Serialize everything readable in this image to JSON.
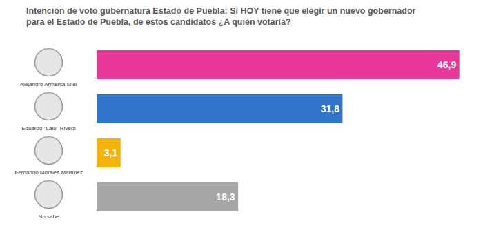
{
  "chart_data": {
    "type": "bar",
    "orientation": "horizontal",
    "title": "Intención de voto gubernatura Estado de Puebla: Si HOY tiene que elegir un nuevo gobernador para el Estado de Puebla, de estos candidatos ¿A quién votaría?",
    "categories": [
      "Alejandro Armenta Mier",
      "Eduardo \"Lalo\" Rivera",
      "Fernando Morales Martínez",
      "No sabe"
    ],
    "values": [
      46.9,
      31.8,
      3.1,
      18.3
    ],
    "value_labels": [
      "46,9",
      "31,8",
      "3,1",
      "18,3"
    ],
    "colors": [
      "#e8389a",
      "#2f74c8",
      "#f5b40c",
      "#a6a6a6"
    ],
    "xlim": [
      0,
      48
    ],
    "data_labels": true,
    "tick_labels": "y",
    "grid": false
  }
}
